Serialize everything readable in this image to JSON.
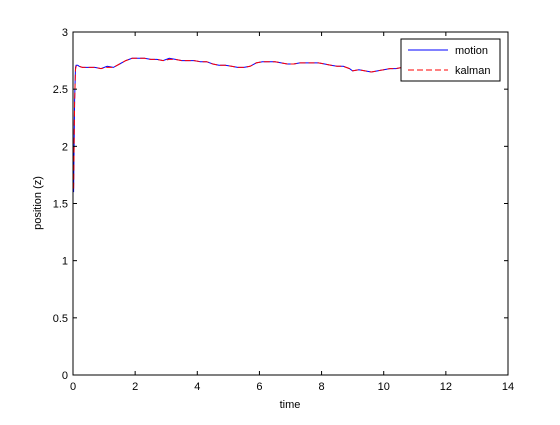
{
  "chart_data": {
    "type": "line",
    "xlabel": "time",
    "ylabel": "position (z)",
    "xlim": [
      0,
      14
    ],
    "ylim": [
      0,
      3
    ],
    "xticks": [
      0,
      2,
      4,
      6,
      8,
      10,
      12,
      14
    ],
    "yticks": [
      0,
      0.5,
      1,
      1.5,
      2,
      2.5,
      3
    ],
    "xtick_labels": [
      "0",
      "2",
      "4",
      "6",
      "8",
      "10",
      "12",
      "14"
    ],
    "ytick_labels": [
      "0",
      "0.5",
      "1",
      "1.5",
      "2",
      "2.5",
      "3"
    ],
    "grid": false,
    "legend_position": "top-right",
    "series": [
      {
        "name": "motion",
        "color": "#0000ff",
        "style": "solid",
        "x": [
          0.02,
          0.05,
          0.08,
          0.1,
          0.15,
          0.2,
          0.3,
          0.5,
          0.7,
          0.9,
          1.1,
          1.3,
          1.5,
          1.7,
          1.9,
          2.1,
          2.3,
          2.5,
          2.7,
          2.9,
          3.1,
          3.3,
          3.5,
          3.7,
          3.9,
          4.1,
          4.3,
          4.5,
          4.7,
          4.9,
          5.1,
          5.3,
          5.5,
          5.7,
          5.9,
          6.1,
          6.3,
          6.5,
          6.7,
          6.9,
          7.1,
          7.3,
          7.5,
          7.7,
          7.9,
          8.1,
          8.3,
          8.5,
          8.7,
          8.9,
          9.0,
          9.2,
          9.4,
          9.6,
          9.8,
          10.0,
          10.2,
          10.4,
          10.6,
          10.7
        ],
        "y": [
          1.6,
          2.4,
          2.69,
          2.71,
          2.71,
          2.7,
          2.69,
          2.69,
          2.69,
          2.68,
          2.7,
          2.69,
          2.72,
          2.75,
          2.77,
          2.77,
          2.77,
          2.76,
          2.76,
          2.75,
          2.77,
          2.76,
          2.75,
          2.75,
          2.75,
          2.74,
          2.74,
          2.72,
          2.71,
          2.71,
          2.7,
          2.69,
          2.69,
          2.7,
          2.73,
          2.74,
          2.74,
          2.74,
          2.73,
          2.72,
          2.72,
          2.73,
          2.73,
          2.73,
          2.73,
          2.72,
          2.71,
          2.7,
          2.7,
          2.68,
          2.66,
          2.67,
          2.66,
          2.65,
          2.66,
          2.67,
          2.68,
          2.68,
          2.69,
          2.7
        ]
      },
      {
        "name": "kalman",
        "color": "#ff0000",
        "style": "dashed",
        "x": [
          0.02,
          0.05,
          0.08,
          0.1,
          0.15,
          0.2,
          0.3,
          0.5,
          0.7,
          0.9,
          1.1,
          1.3,
          1.5,
          1.7,
          1.9,
          2.1,
          2.3,
          2.5,
          2.7,
          2.9,
          3.1,
          3.3,
          3.5,
          3.7,
          3.9,
          4.1,
          4.3,
          4.5,
          4.7,
          4.9,
          5.1,
          5.3,
          5.5,
          5.7,
          5.9,
          6.1,
          6.3,
          6.5,
          6.7,
          6.9,
          7.1,
          7.3,
          7.5,
          7.7,
          7.9,
          8.1,
          8.3,
          8.5,
          8.7,
          8.9,
          9.0,
          9.2,
          9.4,
          9.6,
          9.8,
          10.0,
          10.2,
          10.4,
          10.6,
          10.7
        ],
        "y": [
          1.63,
          2.38,
          2.67,
          2.7,
          2.7,
          2.7,
          2.69,
          2.69,
          2.69,
          2.68,
          2.69,
          2.69,
          2.72,
          2.75,
          2.77,
          2.77,
          2.77,
          2.76,
          2.76,
          2.75,
          2.76,
          2.76,
          2.75,
          2.75,
          2.75,
          2.74,
          2.74,
          2.72,
          2.71,
          2.71,
          2.7,
          2.69,
          2.69,
          2.7,
          2.73,
          2.74,
          2.74,
          2.74,
          2.73,
          2.72,
          2.72,
          2.73,
          2.73,
          2.73,
          2.73,
          2.72,
          2.71,
          2.7,
          2.7,
          2.68,
          2.66,
          2.67,
          2.66,
          2.65,
          2.66,
          2.67,
          2.68,
          2.68,
          2.69,
          2.7
        ]
      }
    ]
  }
}
